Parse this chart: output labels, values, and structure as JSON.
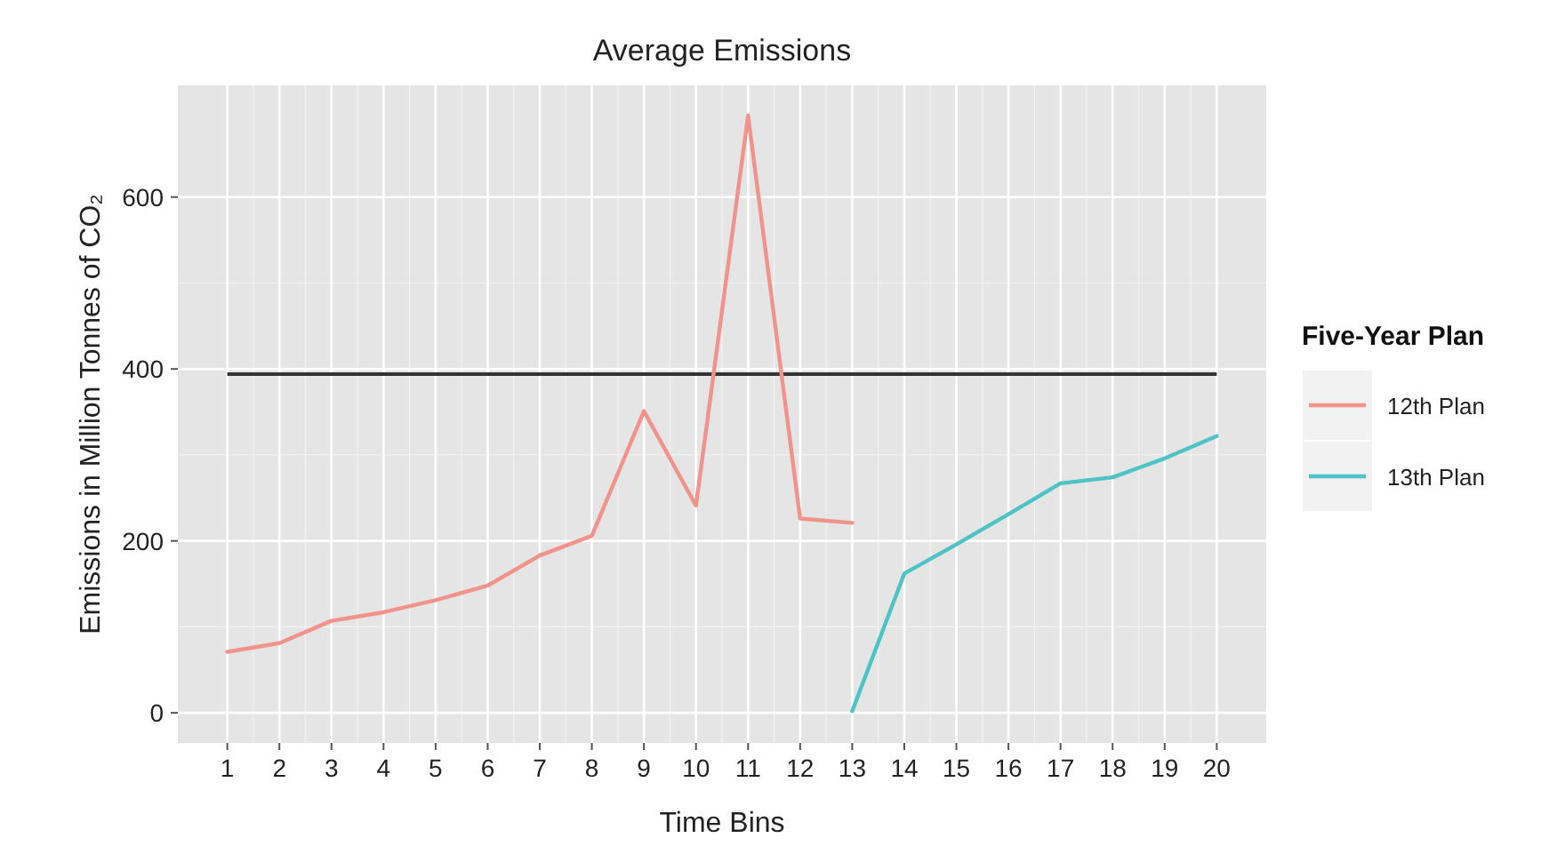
{
  "chart_data": {
    "type": "line",
    "title": "Average Emissions",
    "xlabel": "Time Bins",
    "ylabel": "Emissions in Million Tonnes of CO₂",
    "legend_title": "Five-Year Plan",
    "x": [
      1,
      2,
      3,
      4,
      5,
      6,
      7,
      8,
      9,
      10,
      11,
      12,
      13,
      14,
      15,
      16,
      17,
      18,
      19,
      20
    ],
    "xlim": [
      0.05,
      20.95
    ],
    "xticks": [
      1,
      2,
      3,
      4,
      5,
      6,
      7,
      8,
      9,
      10,
      11,
      12,
      13,
      14,
      15,
      16,
      17,
      18,
      19,
      20
    ],
    "ylim": [
      -35,
      730
    ],
    "yticks": [
      0,
      200,
      400,
      600
    ],
    "series": [
      {
        "name": "12th Plan",
        "color": "#f1938a",
        "values": [
          71,
          81,
          107,
          117,
          131,
          148,
          183,
          206,
          351,
          241,
          695,
          226,
          221,
          null,
          null,
          null,
          null,
          null,
          null,
          null
        ]
      },
      {
        "name": "13th Plan",
        "color": "#4ec3c6",
        "values": [
          null,
          null,
          null,
          null,
          null,
          null,
          null,
          null,
          null,
          null,
          null,
          null,
          2,
          162,
          196,
          231,
          267,
          274,
          296,
          322
        ]
      }
    ],
    "ref_lines": [
      {
        "axis": "y",
        "value": 394,
        "color": "#333333"
      }
    ],
    "grid": true,
    "legend": "right",
    "line_style": "solid"
  }
}
